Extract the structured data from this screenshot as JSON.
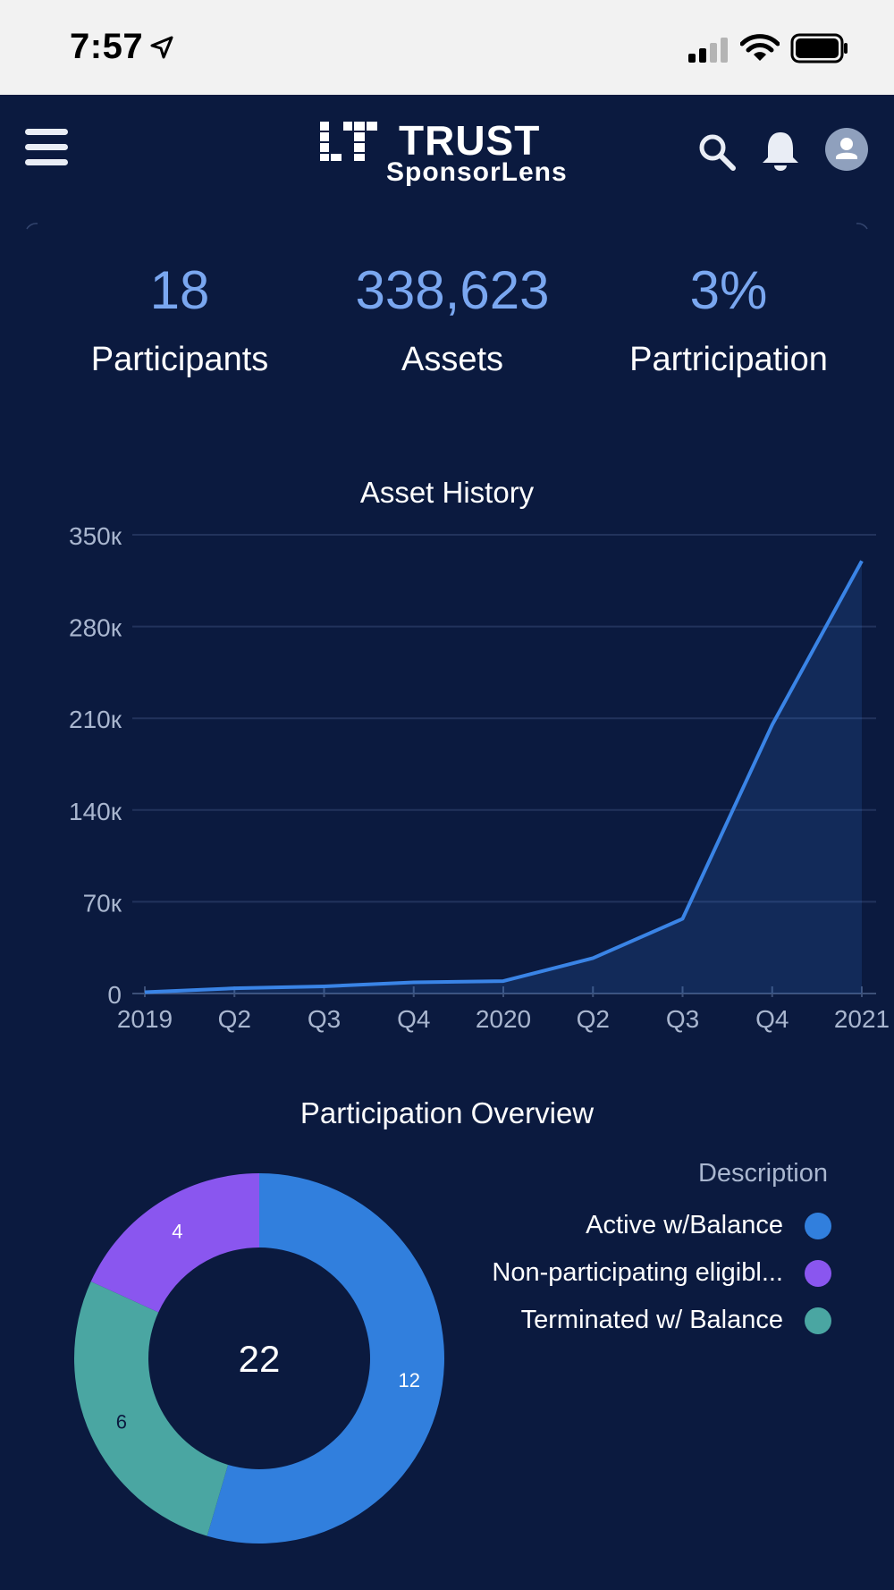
{
  "status_bar": {
    "time": "7:57",
    "icons": [
      "location-arrow-icon",
      "signal-icon",
      "wifi-icon",
      "battery-icon"
    ]
  },
  "nav": {
    "logo_title": "TRUST",
    "logo_subtitle": "SponsorLens",
    "icons": [
      "menu-icon",
      "search-icon",
      "bell-icon",
      "avatar-icon"
    ]
  },
  "kpis": [
    {
      "value": "18",
      "label": "Participants"
    },
    {
      "value": "338,623",
      "label": "Assets"
    },
    {
      "value": "3%",
      "label": "Partricipation"
    }
  ],
  "colors": {
    "background": "#0b1a3f",
    "accent_text": "#7aa7f0",
    "line": "#3a84e6",
    "active": "#317fdd",
    "non_participating": "#8a56ef",
    "terminated": "#4aa6a2"
  },
  "chart_data": [
    {
      "type": "area",
      "title": "Asset History",
      "categories": [
        "2019",
        "Q2",
        "Q3",
        "Q4",
        "2020",
        "Q2",
        "Q3",
        "Q4",
        "2021"
      ],
      "ytick_labels": [
        "0",
        "70к",
        "140к",
        "210к",
        "280к",
        "350к"
      ],
      "yticks": [
        0,
        70000,
        140000,
        210000,
        280000,
        350000
      ],
      "ylim": [
        0,
        350000
      ],
      "series": [
        {
          "values": [
            1000,
            4000,
            5500,
            8500,
            9500,
            27000,
            57000,
            205000,
            330000
          ]
        }
      ],
      "grid": true
    },
    {
      "type": "pie",
      "title": "Participation Overview",
      "center_label": "22",
      "legend_title": "Description",
      "legend_position": "right",
      "slices": [
        {
          "label": "Active w/Balance",
          "value": 12,
          "value_label": "12",
          "color": "#317fdd"
        },
        {
          "label": "Terminated w/ Balance",
          "value": 6,
          "value_label": "6",
          "color": "#4aa6a2"
        },
        {
          "label": "Non-participating eligibl...",
          "value": 4,
          "value_label": "4",
          "color": "#8a56ef"
        }
      ]
    }
  ]
}
